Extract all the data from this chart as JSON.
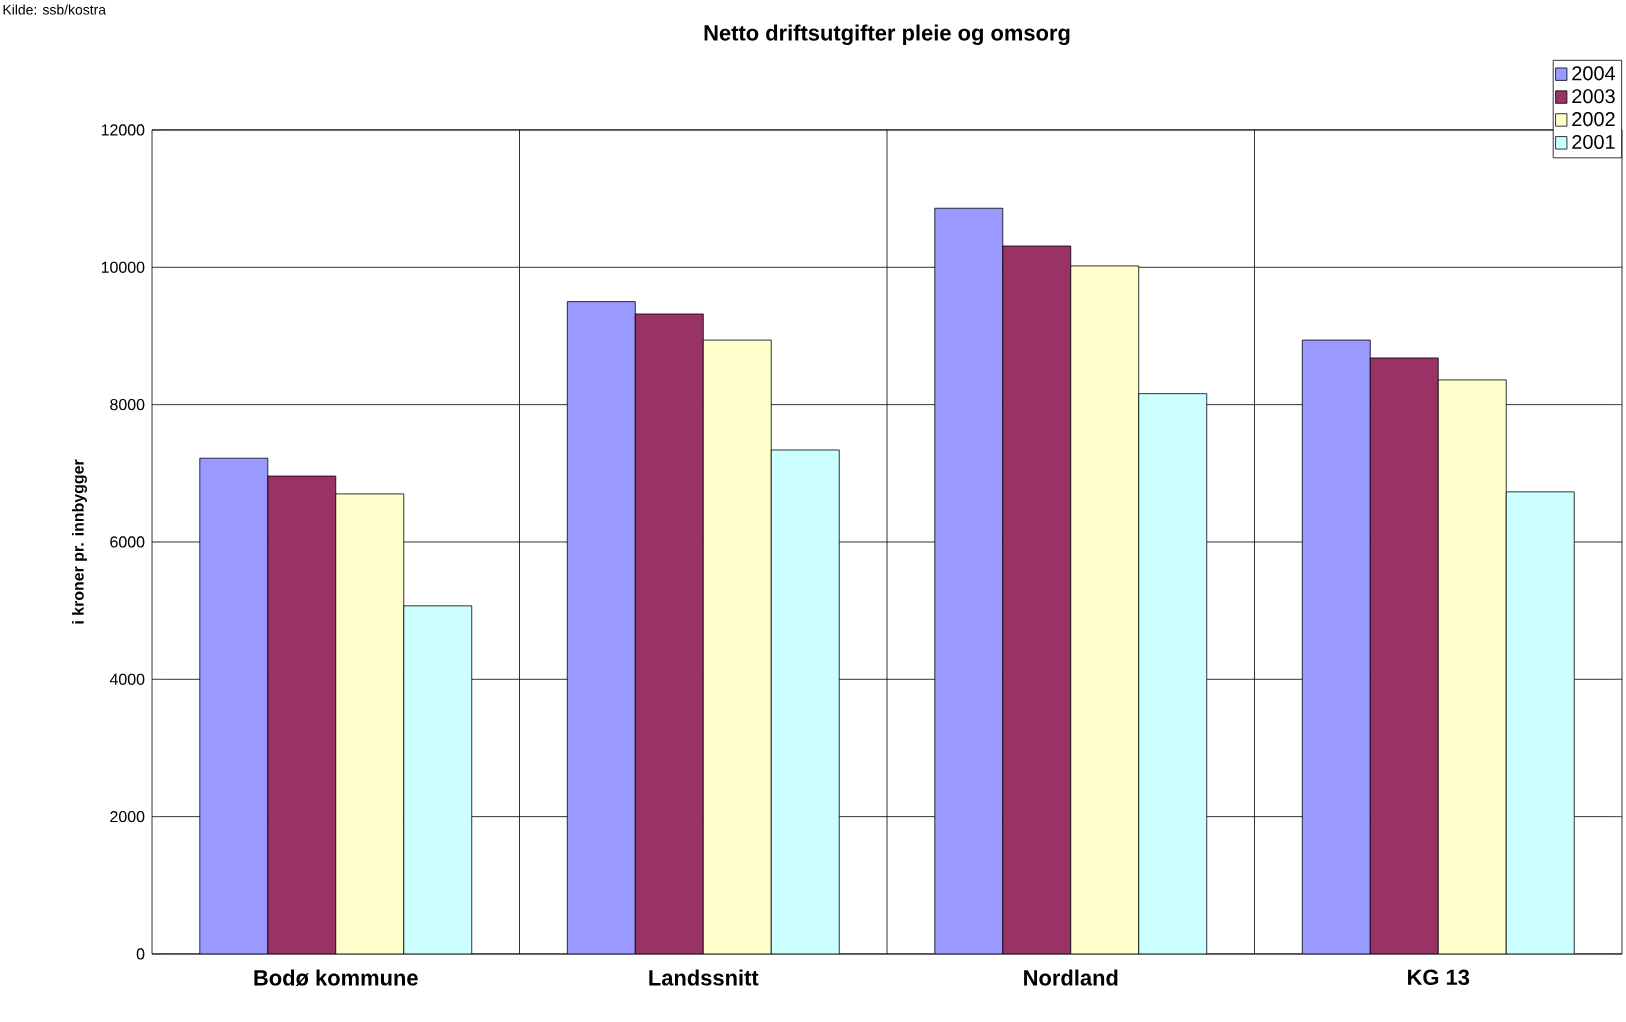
{
  "chart_data": {
    "type": "bar",
    "title": "Netto driftsutgifter pleie og omsorg",
    "ylabel": "i kroner pr. innbygger",
    "annotations": [
      "Kilde: ssb/kostra"
    ],
    "categories": [
      "Bodø kommune",
      "Landssnitt",
      "Nordland",
      "KG 13"
    ],
    "series": [
      {
        "name": "2004",
        "color": "#9999ff",
        "values": [
          7220,
          9500,
          10860,
          8940
        ]
      },
      {
        "name": "2003",
        "color": "#993366",
        "values": [
          6960,
          9320,
          10310,
          8680
        ]
      },
      {
        "name": "2002",
        "color": "#ffffcc",
        "values": [
          6700,
          8940,
          10020,
          8360
        ]
      },
      {
        "name": "2001",
        "color": "#ccffff",
        "values": [
          5070,
          7340,
          8160,
          6730
        ]
      }
    ],
    "ylim": [
      0,
      12000
    ],
    "yticks": [
      0,
      2000,
      4000,
      6000,
      8000,
      10000,
      12000
    ],
    "grid": true,
    "legend": "top right"
  }
}
